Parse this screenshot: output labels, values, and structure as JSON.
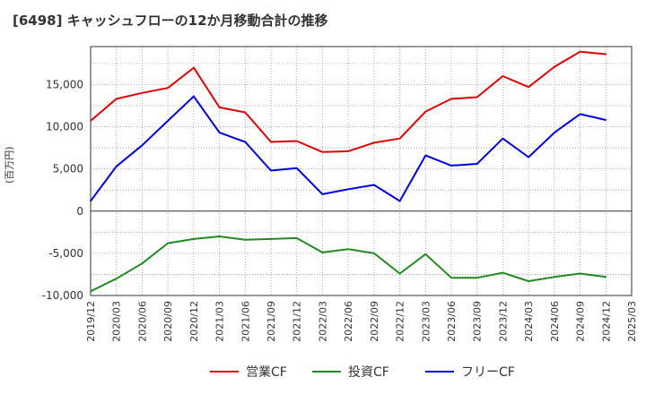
{
  "chart_data": {
    "type": "line",
    "title": "[6498]  キャッシュフローの12か月移動合計の推移",
    "ylabel": "(百万円)",
    "xlabel": "",
    "ylim": [
      -10000,
      19500
    ],
    "yticks": [
      -10000,
      -5000,
      0,
      5000,
      10000,
      15000
    ],
    "ytick_labels": [
      "-10,000",
      "-5,000",
      "0",
      "5,000",
      "10,000",
      "15,000"
    ],
    "categories": [
      "2019/12",
      "2020/03",
      "2020/06",
      "2020/09",
      "2020/12",
      "2021/03",
      "2021/06",
      "2021/09",
      "2021/12",
      "2022/03",
      "2022/06",
      "2022/09",
      "2022/12",
      "2023/03",
      "2023/06",
      "2023/09",
      "2023/12",
      "2024/03",
      "2024/06",
      "2024/09",
      "2024/12",
      "2025/03"
    ],
    "grid": true,
    "legend_position": "bottom",
    "series": [
      {
        "name": "営業CF",
        "color": "#dd0000",
        "values": [
          10700,
          13300,
          14000,
          14600,
          17000,
          12300,
          11700,
          8200,
          8300,
          7000,
          7100,
          8100,
          8600,
          11800,
          13300,
          13500,
          16000,
          14700,
          17100,
          18900,
          18600,
          null
        ]
      },
      {
        "name": "投資CF",
        "color": "#228822",
        "values": [
          -9500,
          -8000,
          -6200,
          -3800,
          -3300,
          -3000,
          -3400,
          -3300,
          -3200,
          -4900,
          -4500,
          -5000,
          -7400,
          -5100,
          -7900,
          -7900,
          -7300,
          -8300,
          -7800,
          -7400,
          -7800,
          null
        ]
      },
      {
        "name": "フリーCF",
        "color": "#0000dd",
        "values": [
          1200,
          5300,
          7800,
          10700,
          13600,
          9300,
          8200,
          4800,
          5100,
          2000,
          2600,
          3100,
          1200,
          6600,
          5400,
          5600,
          8600,
          6400,
          9300,
          11500,
          10800,
          null
        ]
      }
    ]
  }
}
